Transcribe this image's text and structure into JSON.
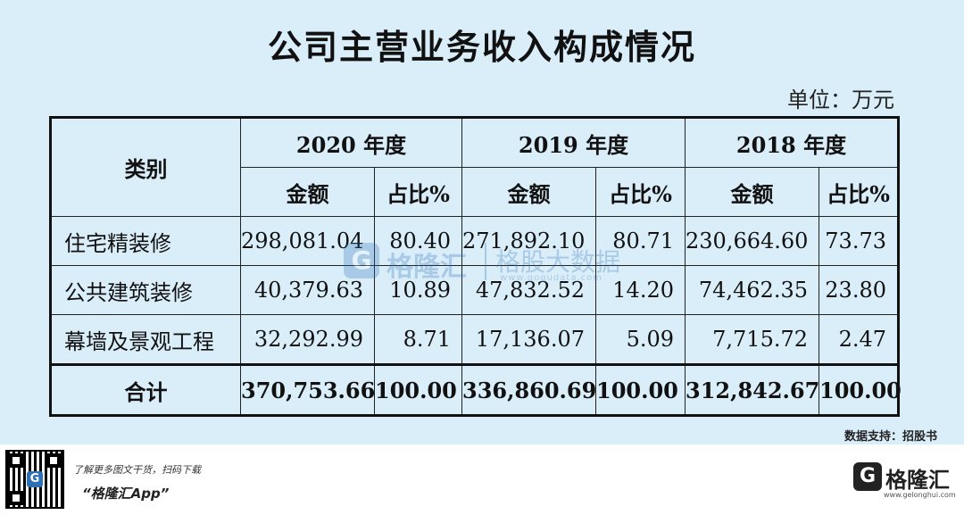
{
  "title": "公司主营业务收入构成情况",
  "unit": "单位：万元",
  "table": {
    "category_header": "类别",
    "years": [
      "2020 年度",
      "2019 年度",
      "2018 年度"
    ],
    "amount_label": "金额",
    "ratio_label": "占比%",
    "rows": [
      {
        "category": "住宅精装修",
        "v": [
          "298,081.04",
          "80.40",
          "271,892.10",
          "80.71",
          "230,664.60",
          "73.73"
        ]
      },
      {
        "category": "公共建筑装修",
        "v": [
          "40,379.63",
          "10.89",
          "47,832.52",
          "14.20",
          "74,462.35",
          "23.80"
        ]
      },
      {
        "category": "幕墙及景观工程",
        "v": [
          "32,292.99",
          "8.71",
          "17,136.07",
          "5.09",
          "7,715.72",
          "2.47"
        ]
      }
    ],
    "total": {
      "category": "合计",
      "v": [
        "370,753.66",
        "100.00",
        "336,860.69",
        "100.00",
        "312,842.67",
        "100.00"
      ]
    }
  },
  "watermark": {
    "logo": "G",
    "name": "格隆汇",
    "sub": "格股大数据",
    "url": "www.gogudata.com"
  },
  "source": "数据支持：招股书",
  "footer": {
    "promo": "了解更多图文干货，扫码下载",
    "app": "“格隆汇App”",
    "qr_logo": "G",
    "brand_logo": "G",
    "brand_name": "格隆汇",
    "brand_url": "www.gelonghui.com",
    "bottom_brand": "格隆汇"
  }
}
